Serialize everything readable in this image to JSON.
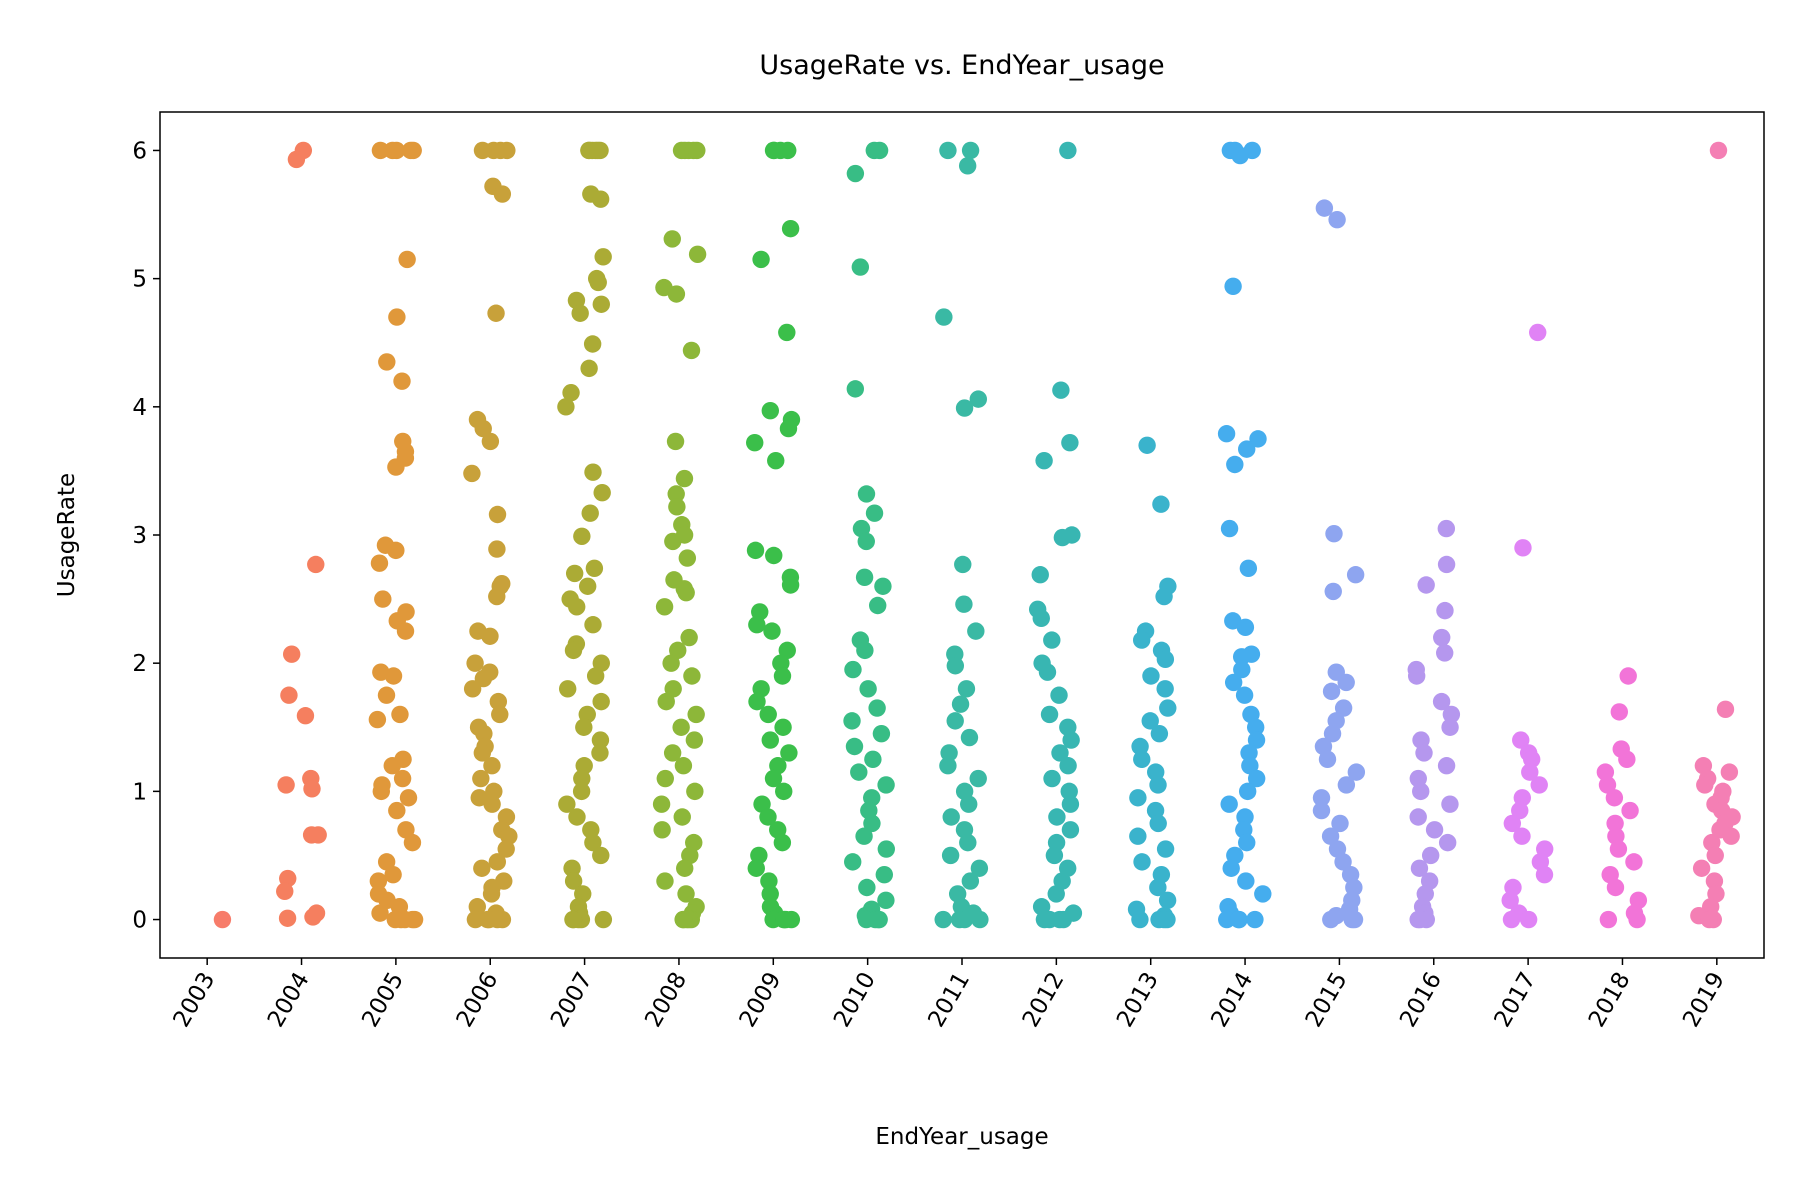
{
  "chart_data": {
    "type": "strip",
    "title": "UsageRate vs. EndYear_usage",
    "x_label": "EndYear_usage",
    "y_label": "UsageRate",
    "categories": [
      "2003",
      "2004",
      "2005",
      "2006",
      "2007",
      "2008",
      "2009",
      "2010",
      "2011",
      "2012",
      "2013",
      "2014",
      "2015",
      "2016",
      "2017",
      "2018",
      "2019"
    ],
    "colors": [
      "#f77c6a",
      "#f57f5f",
      "#e0983a",
      "#c8a13a",
      "#abab35",
      "#8db739",
      "#3bbf4a",
      "#38bd85",
      "#3ab9a4",
      "#38b6b2",
      "#3ab3cc",
      "#45adee",
      "#8ea5f0",
      "#b597ee",
      "#e083f5",
      "#f274d8",
      "#f47fb4"
    ],
    "values": [
      [
        0
      ],
      [
        6,
        5.93,
        2.77,
        2.07,
        1.75,
        1.59,
        1.1,
        1.05,
        1.02,
        0.66,
        0.66,
        0.32,
        0.22,
        0.05,
        0.02,
        0.01
      ],
      [
        6,
        6,
        6,
        6,
        6,
        5.15,
        4.7,
        4.35,
        4.2,
        3.73,
        3.65,
        3.6,
        3.53,
        2.92,
        2.88,
        2.78,
        2.5,
        2.4,
        2.33,
        2.25,
        1.93,
        1.9,
        1.75,
        1.6,
        1.56,
        1.25,
        1.2,
        1.1,
        1.05,
        1.0,
        0.95,
        0.85,
        0.7,
        0.6,
        0.45,
        0.35,
        0.3,
        0.2,
        0.15,
        0.1,
        0.05,
        0,
        0,
        0,
        0,
        0
      ],
      [
        6,
        6,
        6,
        6,
        5.72,
        5.66,
        4.73,
        3.9,
        3.83,
        3.73,
        3.48,
        3.16,
        2.89,
        2.62,
        2.6,
        2.52,
        2.25,
        2.21,
        2.0,
        1.93,
        1.88,
        1.8,
        1.7,
        1.6,
        1.5,
        1.45,
        1.35,
        1.3,
        1.2,
        1.1,
        1.0,
        0.95,
        0.9,
        0.8,
        0.7,
        0.65,
        0.55,
        0.45,
        0.4,
        0.3,
        0.25,
        0.2,
        0.1,
        0.05,
        0,
        0,
        0,
        0,
        0
      ],
      [
        6,
        6,
        6,
        6,
        6,
        6,
        5.66,
        5.62,
        5.17,
        5.0,
        4.97,
        4.83,
        4.8,
        4.73,
        4.49,
        4.3,
        4.11,
        4.0,
        3.49,
        3.33,
        3.17,
        2.99,
        2.74,
        2.7,
        2.6,
        2.5,
        2.44,
        2.3,
        2.15,
        2.1,
        2.0,
        1.9,
        1.8,
        1.7,
        1.6,
        1.5,
        1.4,
        1.3,
        1.2,
        1.1,
        1.0,
        0.9,
        0.8,
        0.7,
        0.6,
        0.5,
        0.4,
        0.3,
        0.2,
        0.1,
        0.05,
        0,
        0,
        0,
        0,
        0
      ],
      [
        6,
        6,
        6,
        6,
        6,
        5.31,
        5.19,
        4.93,
        4.88,
        4.44,
        3.73,
        3.44,
        3.32,
        3.22,
        3.08,
        3.0,
        2.95,
        2.82,
        2.65,
        2.58,
        2.55,
        2.44,
        2.2,
        2.1,
        2.0,
        1.9,
        1.8,
        1.7,
        1.6,
        1.5,
        1.4,
        1.3,
        1.2,
        1.1,
        1.0,
        0.9,
        0.8,
        0.7,
        0.6,
        0.5,
        0.4,
        0.3,
        0.2,
        0.1,
        0.05,
        0,
        0,
        0,
        0,
        0
      ],
      [
        6,
        6,
        6,
        6,
        5.39,
        5.15,
        4.58,
        3.97,
        3.9,
        3.83,
        3.72,
        3.58,
        2.88,
        2.84,
        2.67,
        2.61,
        2.4,
        2.3,
        2.25,
        2.1,
        2.0,
        1.9,
        1.8,
        1.7,
        1.6,
        1.5,
        1.4,
        1.3,
        1.2,
        1.1,
        1.0,
        0.9,
        0.8,
        0.7,
        0.6,
        0.5,
        0.4,
        0.3,
        0.2,
        0.1,
        0.05,
        0,
        0,
        0,
        0,
        0
      ],
      [
        6,
        6,
        5.82,
        5.09,
        4.14,
        3.32,
        3.17,
        3.05,
        2.95,
        2.67,
        2.6,
        2.45,
        2.18,
        2.1,
        1.95,
        1.8,
        1.65,
        1.55,
        1.45,
        1.35,
        1.25,
        1.15,
        1.05,
        0.95,
        0.85,
        0.75,
        0.65,
        0.55,
        0.45,
        0.35,
        0.25,
        0.15,
        0.08,
        0.03,
        0,
        0,
        0,
        0
      ],
      [
        6,
        6,
        5.88,
        4.7,
        4.06,
        3.99,
        2.77,
        2.46,
        2.25,
        2.07,
        1.98,
        1.8,
        1.68,
        1.55,
        1.42,
        1.3,
        1.2,
        1.1,
        1.0,
        0.9,
        0.8,
        0.7,
        0.6,
        0.5,
        0.4,
        0.3,
        0.2,
        0.1,
        0.05,
        0,
        0,
        0,
        0
      ],
      [
        6,
        4.13,
        3.72,
        3.58,
        3.0,
        2.98,
        2.69,
        2.42,
        2.35,
        2.18,
        2.0,
        1.93,
        1.75,
        1.6,
        1.5,
        1.4,
        1.3,
        1.2,
        1.1,
        1.0,
        0.9,
        0.8,
        0.7,
        0.6,
        0.5,
        0.4,
        0.3,
        0.2,
        0.1,
        0.05,
        0,
        0,
        0,
        0
      ],
      [
        3.7,
        3.24,
        2.6,
        2.52,
        2.25,
        2.18,
        2.1,
        2.03,
        1.9,
        1.8,
        1.65,
        1.55,
        1.45,
        1.35,
        1.25,
        1.15,
        1.05,
        0.95,
        0.85,
        0.75,
        0.65,
        0.55,
        0.45,
        0.35,
        0.25,
        0.15,
        0.08,
        0.03,
        0,
        0,
        0,
        0
      ],
      [
        6,
        6,
        6,
        5.96,
        4.94,
        3.79,
        3.75,
        3.67,
        3.55,
        3.05,
        2.74,
        2.33,
        2.28,
        2.07,
        2.05,
        1.95,
        1.85,
        1.75,
        1.6,
        1.5,
        1.4,
        1.3,
        1.2,
        1.1,
        1.0,
        0.9,
        0.8,
        0.7,
        0.6,
        0.5,
        0.4,
        0.3,
        0.2,
        0.1,
        0.05,
        0,
        0,
        0,
        0
      ],
      [
        5.55,
        5.46,
        3.01,
        2.69,
        2.56,
        1.93,
        1.85,
        1.78,
        1.65,
        1.55,
        1.45,
        1.35,
        1.25,
        1.15,
        1.05,
        0.95,
        0.85,
        0.75,
        0.65,
        0.55,
        0.45,
        0.35,
        0.25,
        0.15,
        0.08,
        0.03,
        0,
        0,
        0
      ],
      [
        3.05,
        2.77,
        2.61,
        2.41,
        2.2,
        2.08,
        1.95,
        1.9,
        1.7,
        1.6,
        1.5,
        1.4,
        1.3,
        1.2,
        1.1,
        1.0,
        0.9,
        0.8,
        0.7,
        0.6,
        0.5,
        0.4,
        0.3,
        0.2,
        0.1,
        0.05,
        0,
        0,
        0
      ],
      [
        4.58,
        2.9,
        1.4,
        1.3,
        1.25,
        1.15,
        1.05,
        0.95,
        0.85,
        0.75,
        0.65,
        0.55,
        0.45,
        0.35,
        0.25,
        0.15,
        0.05,
        0,
        0
      ],
      [
        1.9,
        1.62,
        1.33,
        1.25,
        1.15,
        1.05,
        0.95,
        0.85,
        0.75,
        0.65,
        0.55,
        0.45,
        0.35,
        0.25,
        0.15,
        0.05,
        0,
        0
      ],
      [
        6,
        1.64,
        1.2,
        1.15,
        1.1,
        1.05,
        1.0,
        0.95,
        0.9,
        0.85,
        0.8,
        0.75,
        0.7,
        0.65,
        0.6,
        0.5,
        0.4,
        0.3,
        0.2,
        0.1,
        0.03,
        0,
        0
      ]
    ],
    "ylim": [
      -0.3,
      6.3
    ],
    "yticks": [
      0,
      1,
      2,
      3,
      4,
      5,
      6
    ],
    "grid": false
  }
}
